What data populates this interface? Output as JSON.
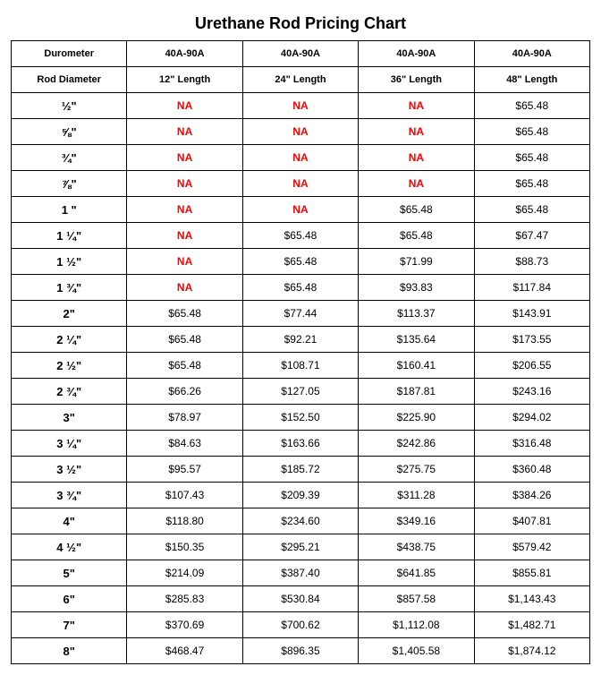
{
  "title": "Urethane Rod Pricing Chart",
  "colors": {
    "text": "#000000",
    "na": "#ff0000",
    "border": "#000000",
    "background": "#ffffff"
  },
  "fonts": {
    "title_size_pt": 18,
    "header_size_pt": 11,
    "diameter_size_pt": 13,
    "cell_size_pt": 12,
    "family": "Arial"
  },
  "table": {
    "header_row1": [
      "Durometer",
      "40A-90A",
      "40A-90A",
      "40A-90A",
      "40A-90A"
    ],
    "header_row2": [
      "Rod Diameter",
      "12\" Length",
      "24\" Length",
      "36\" Length",
      "48\" Length"
    ],
    "rows": [
      {
        "d": "½\"",
        "c": [
          "NA",
          "NA",
          "NA",
          "$65.48"
        ]
      },
      {
        "d": "⅝\"",
        "c": [
          "NA",
          "NA",
          "NA",
          "$65.48"
        ]
      },
      {
        "d": "¾\"",
        "c": [
          "NA",
          "NA",
          "NA",
          "$65.48"
        ]
      },
      {
        "d": "⅞\"",
        "c": [
          "NA",
          "NA",
          "NA",
          "$65.48"
        ]
      },
      {
        "d": "1 \"",
        "c": [
          "NA",
          "NA",
          "$65.48",
          "$65.48"
        ]
      },
      {
        "d": "1 ¼\"",
        "c": [
          "NA",
          "$65.48",
          "$65.48",
          "$67.47"
        ]
      },
      {
        "d": "1 ½\"",
        "c": [
          "NA",
          "$65.48",
          "$71.99",
          "$88.73"
        ]
      },
      {
        "d": "1 ¾\"",
        "c": [
          "NA",
          "$65.48",
          "$93.83",
          "$117.84"
        ]
      },
      {
        "d": "2\"",
        "c": [
          "$65.48",
          "$77.44",
          "$113.37",
          "$143.91"
        ]
      },
      {
        "d": "2 ¼\"",
        "c": [
          "$65.48",
          "$92.21",
          "$135.64",
          "$173.55"
        ]
      },
      {
        "d": "2 ½\"",
        "c": [
          "$65.48",
          "$108.71",
          "$160.41",
          "$206.55"
        ]
      },
      {
        "d": "2 ¾\"",
        "c": [
          "$66.26",
          "$127.05",
          "$187.81",
          "$243.16"
        ]
      },
      {
        "d": "3\"",
        "c": [
          "$78.97",
          "$152.50",
          "$225.90",
          "$294.02"
        ]
      },
      {
        "d": "3 ¼\"",
        "c": [
          "$84.63",
          "$163.66",
          "$242.86",
          "$316.48"
        ]
      },
      {
        "d": "3 ½\"",
        "c": [
          "$95.57",
          "$185.72",
          "$275.75",
          "$360.48"
        ]
      },
      {
        "d": "3 ¾\"",
        "c": [
          "$107.43",
          "$209.39",
          "$311.28",
          "$384.26"
        ]
      },
      {
        "d": "4\"",
        "c": [
          "$118.80",
          "$234.60",
          "$349.16",
          "$407.81"
        ]
      },
      {
        "d": "4 ½\"",
        "c": [
          "$150.35",
          "$295.21",
          "$438.75",
          "$579.42"
        ]
      },
      {
        "d": "5\"",
        "c": [
          "$214.09",
          "$387.40",
          "$641.85",
          "$855.81"
        ]
      },
      {
        "d": "6\"",
        "c": [
          "$285.83",
          "$530.84",
          "$857.58",
          "$1,143.43"
        ]
      },
      {
        "d": "7\"",
        "c": [
          "$370.69",
          "$700.62",
          "$1,112.08",
          "$1,482.71"
        ]
      },
      {
        "d": "8\"",
        "c": [
          "$468.47",
          "$896.35",
          "$1,405.58",
          "$1,874.12"
        ]
      }
    ]
  }
}
